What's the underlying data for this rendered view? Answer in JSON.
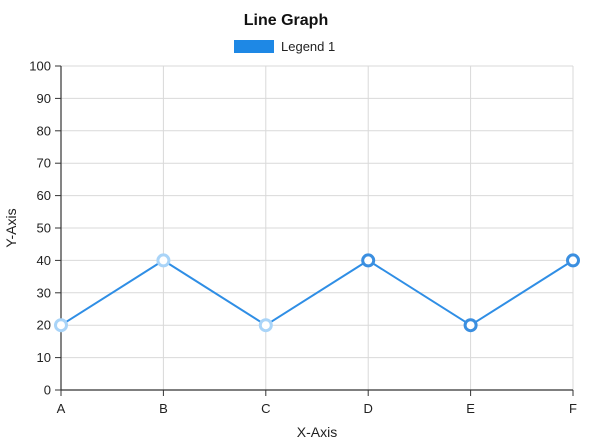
{
  "chart_data": {
    "type": "line",
    "title": "Line Graph",
    "xlabel": "X-Axis",
    "ylabel": "Y-Axis",
    "categories": [
      "A",
      "B",
      "C",
      "D",
      "E",
      "F"
    ],
    "series": [
      {
        "name": "Legend 1",
        "values": [
          20,
          40,
          20,
          40,
          20,
          40
        ],
        "color": "#2f8ee5"
      }
    ],
    "ylim": [
      0,
      100
    ],
    "yticks": [
      "0",
      "10",
      "20",
      "30",
      "40",
      "50",
      "60",
      "70",
      "80",
      "90",
      "100"
    ],
    "grid": true,
    "legend_position": "top-center"
  },
  "colors": {
    "line": "#2f8ee5",
    "legend_fill": "#1e88e5",
    "point_fill": "#ffffff",
    "point_stroke_light": "#a9d4f8",
    "point_stroke_dark": "#3b8fe0",
    "grid": "#d9d9d9",
    "axis": "#333333",
    "text": "#222222"
  }
}
